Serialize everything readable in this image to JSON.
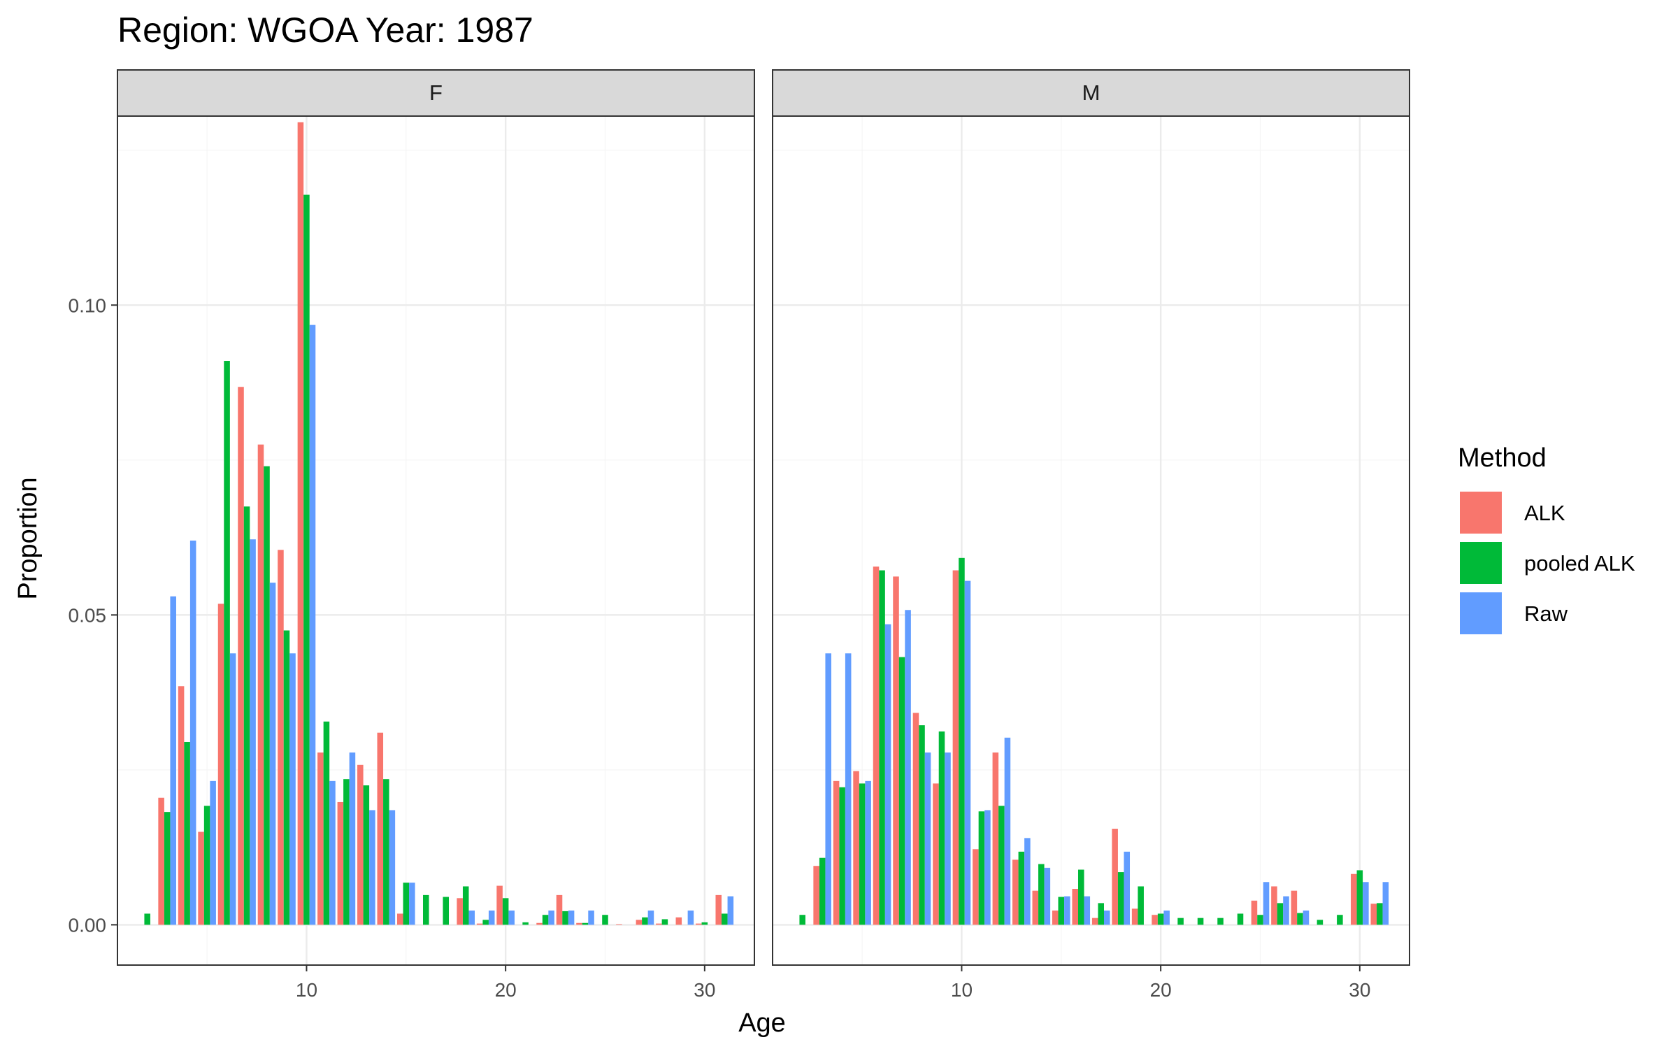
{
  "chart_data": {
    "type": "bar",
    "title": "Region: WGOA Year: 1987",
    "xlabel": "Age",
    "ylabel": "Proportion",
    "xlim": [
      0.5,
      32.5
    ],
    "ylim": [
      -0.0065,
      0.1305
    ],
    "x_ticks": [
      10,
      20,
      30
    ],
    "y_ticks": [
      0,
      0.05,
      0.1
    ],
    "y_tick_labels": [
      "0.00",
      "0.05",
      "0.10"
    ],
    "grid": true,
    "legend": {
      "title": "Method",
      "position": "right",
      "entries": [
        "ALK",
        "pooled ALK",
        "Raw"
      ]
    },
    "colors": {
      "ALK": "#F8766D",
      "pooled ALK": "#00BA38",
      "Raw": "#619CFF",
      "strip_bg": "#D9D9D9",
      "grid_major": "#EBEBEB",
      "grid_minor": "#F5F5F5",
      "frame": "#333333"
    },
    "panels": [
      {
        "label": "F",
        "series": [
          {
            "name": "ALK",
            "x": [
              3,
              4,
              5,
              6,
              7,
              8,
              9,
              10,
              11,
              12,
              13,
              14,
              15,
              18,
              19,
              20,
              22,
              23,
              24,
              26,
              27,
              28,
              29,
              30,
              31
            ],
            "values": [
              0.0205,
              0.0385,
              0.015,
              0.0518,
              0.0868,
              0.0775,
              0.0605,
              0.1295,
              0.0278,
              0.0198,
              0.0258,
              0.031,
              0.0018,
              0.0043,
              0.0002,
              0.0063,
              0.0003,
              0.0048,
              0.0003,
              0.0001,
              0.0008,
              0.0002,
              0.0012,
              0.0002,
              0.0048
            ]
          },
          {
            "name": "pooled ALK",
            "x": [
              2,
              3,
              4,
              5,
              6,
              7,
              8,
              9,
              10,
              11,
              12,
              13,
              14,
              15,
              16,
              17,
              18,
              19,
              20,
              21,
              22,
              23,
              24,
              25,
              27,
              28,
              30,
              31
            ],
            "values": [
              0.0018,
              0.0182,
              0.0295,
              0.0192,
              0.091,
              0.0675,
              0.074,
              0.0475,
              0.1178,
              0.0328,
              0.0235,
              0.0225,
              0.0235,
              0.0068,
              0.0048,
              0.0045,
              0.0062,
              0.0008,
              0.0043,
              0.0004,
              0.0016,
              0.0022,
              0.0003,
              0.0016,
              0.0012,
              0.0009,
              0.0004,
              0.0018
            ]
          },
          {
            "name": "Raw",
            "x": [
              3,
              4,
              5,
              6,
              7,
              8,
              9,
              10,
              11,
              12,
              13,
              14,
              15,
              18,
              19,
              20,
              22,
              23,
              24,
              27,
              29,
              31
            ],
            "values": [
              0.053,
              0.062,
              0.0232,
              0.0438,
              0.0622,
              0.0552,
              0.0438,
              0.0968,
              0.0232,
              0.0278,
              0.0185,
              0.0185,
              0.0068,
              0.0023,
              0.0023,
              0.0023,
              0.0023,
              0.0023,
              0.0023,
              0.0023,
              0.0023,
              0.0046
            ]
          }
        ]
      },
      {
        "label": "M",
        "series": [
          {
            "name": "ALK",
            "x": [
              3,
              4,
              5,
              6,
              7,
              8,
              9,
              10,
              11,
              12,
              13,
              14,
              15,
              16,
              17,
              18,
              19,
              20,
              25,
              26,
              27,
              30,
              31
            ],
            "values": [
              0.0095,
              0.0232,
              0.0248,
              0.0578,
              0.0562,
              0.0342,
              0.0228,
              0.0572,
              0.0122,
              0.0278,
              0.0105,
              0.0055,
              0.0023,
              0.0058,
              0.0011,
              0.0155,
              0.0026,
              0.0016,
              0.0039,
              0.0062,
              0.0055,
              0.0082,
              0.0034
            ]
          },
          {
            "name": "pooled ALK",
            "x": [
              2,
              3,
              4,
              5,
              6,
              7,
              8,
              9,
              10,
              11,
              12,
              13,
              14,
              15,
              16,
              17,
              18,
              19,
              20,
              21,
              22,
              23,
              24,
              25,
              26,
              27,
              28,
              29,
              30,
              31
            ],
            "values": [
              0.0016,
              0.0108,
              0.0222,
              0.0228,
              0.0572,
              0.0432,
              0.0322,
              0.0312,
              0.0592,
              0.0183,
              0.0192,
              0.0118,
              0.0098,
              0.0045,
              0.0089,
              0.0035,
              0.0085,
              0.0062,
              0.0018,
              0.0011,
              0.0011,
              0.0011,
              0.0018,
              0.0016,
              0.0035,
              0.0019,
              0.0008,
              0.0016,
              0.0088,
              0.0035
            ]
          },
          {
            "name": "Raw",
            "x": [
              3,
              4,
              5,
              6,
              7,
              8,
              9,
              10,
              11,
              12,
              13,
              14,
              15,
              16,
              17,
              18,
              20,
              25,
              26,
              27,
              30,
              31
            ],
            "values": [
              0.0438,
              0.0438,
              0.0232,
              0.0485,
              0.0508,
              0.0278,
              0.0278,
              0.0555,
              0.0185,
              0.0302,
              0.014,
              0.0092,
              0.0046,
              0.0046,
              0.0023,
              0.0118,
              0.0023,
              0.0069,
              0.0046,
              0.0023,
              0.0069,
              0.0069
            ]
          }
        ]
      }
    ]
  }
}
